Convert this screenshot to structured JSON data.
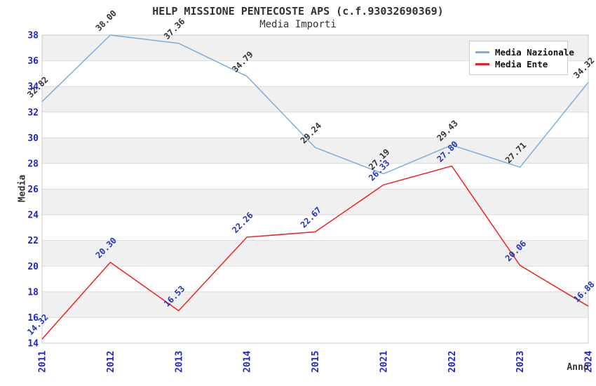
{
  "chart_data": {
    "type": "line",
    "title": "HELP MISSIONE PENTECOSTE APS (c.f.93032690369)",
    "subtitle": "Media Importi",
    "xlabel": "Anno",
    "ylabel": "Media",
    "categories": [
      "2011",
      "2012",
      "2013",
      "2014",
      "2015",
      "2021",
      "2022",
      "2023",
      "2024"
    ],
    "series": [
      {
        "name": "Media Nazionale",
        "color": "#79aede",
        "label_color": "#333333",
        "values": [
          32.82,
          38.0,
          37.36,
          34.79,
          29.24,
          27.19,
          29.43,
          27.71,
          34.32
        ]
      },
      {
        "name": "Media Ente",
        "color": "#ee2222",
        "label_color": "#2233bb",
        "values": [
          14.32,
          20.3,
          16.53,
          22.26,
          22.67,
          26.33,
          27.8,
          20.06,
          16.88
        ]
      }
    ],
    "ylim": [
      14,
      38
    ],
    "yticks": [
      14,
      16,
      18,
      20,
      22,
      24,
      26,
      28,
      30,
      32,
      34,
      36,
      38
    ],
    "value_label_decimals": 2,
    "grid": "horizontal",
    "legend_position": "top-right",
    "colors": {
      "tick_label": "#2222cc",
      "axis_title": "#333333",
      "grid_line": "#dcdcdc",
      "plot_border": "#c8c8c8",
      "band_fill": "#f0f0f0",
      "background": "#ffffff"
    }
  }
}
